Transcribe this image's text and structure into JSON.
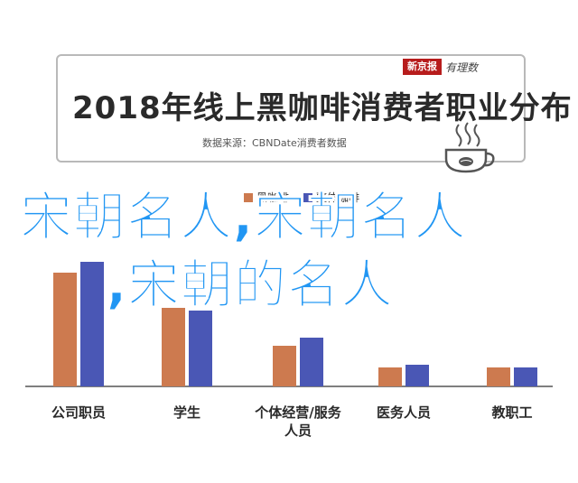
{
  "header": {
    "title": "2018年线上黑咖啡消费者职业分布",
    "source": "数据来源：CBNDate消费者数据",
    "brand_badge": "新京报",
    "brand_script": "有理数",
    "cup_icon": "coffee-cup-icon"
  },
  "overlay": {
    "line1": "宋朝名人,宋朝名人",
    "line2": ",宋朝的名人"
  },
  "chart_data": {
    "type": "bar",
    "categories": [
      "公司职员",
      "学生",
      "个体经营/服务人员",
      "医务人员",
      "教职工"
    ],
    "category_lines": [
      [
        "公司职员"
      ],
      [
        "学生"
      ],
      [
        "个体经营/服务",
        "人员"
      ],
      [
        "医务人员"
      ],
      [
        "教职工"
      ]
    ],
    "series": [
      {
        "name": "黑咖啡",
        "color": "#cd7a4f",
        "values": [
          42,
          29,
          15,
          7,
          7
        ]
      },
      {
        "name": "整体咖啡",
        "color": "#4a57b5",
        "values": [
          46,
          28,
          18,
          8,
          7
        ]
      }
    ],
    "ylim": [
      0,
      50
    ],
    "grid": false,
    "legend": "top"
  }
}
